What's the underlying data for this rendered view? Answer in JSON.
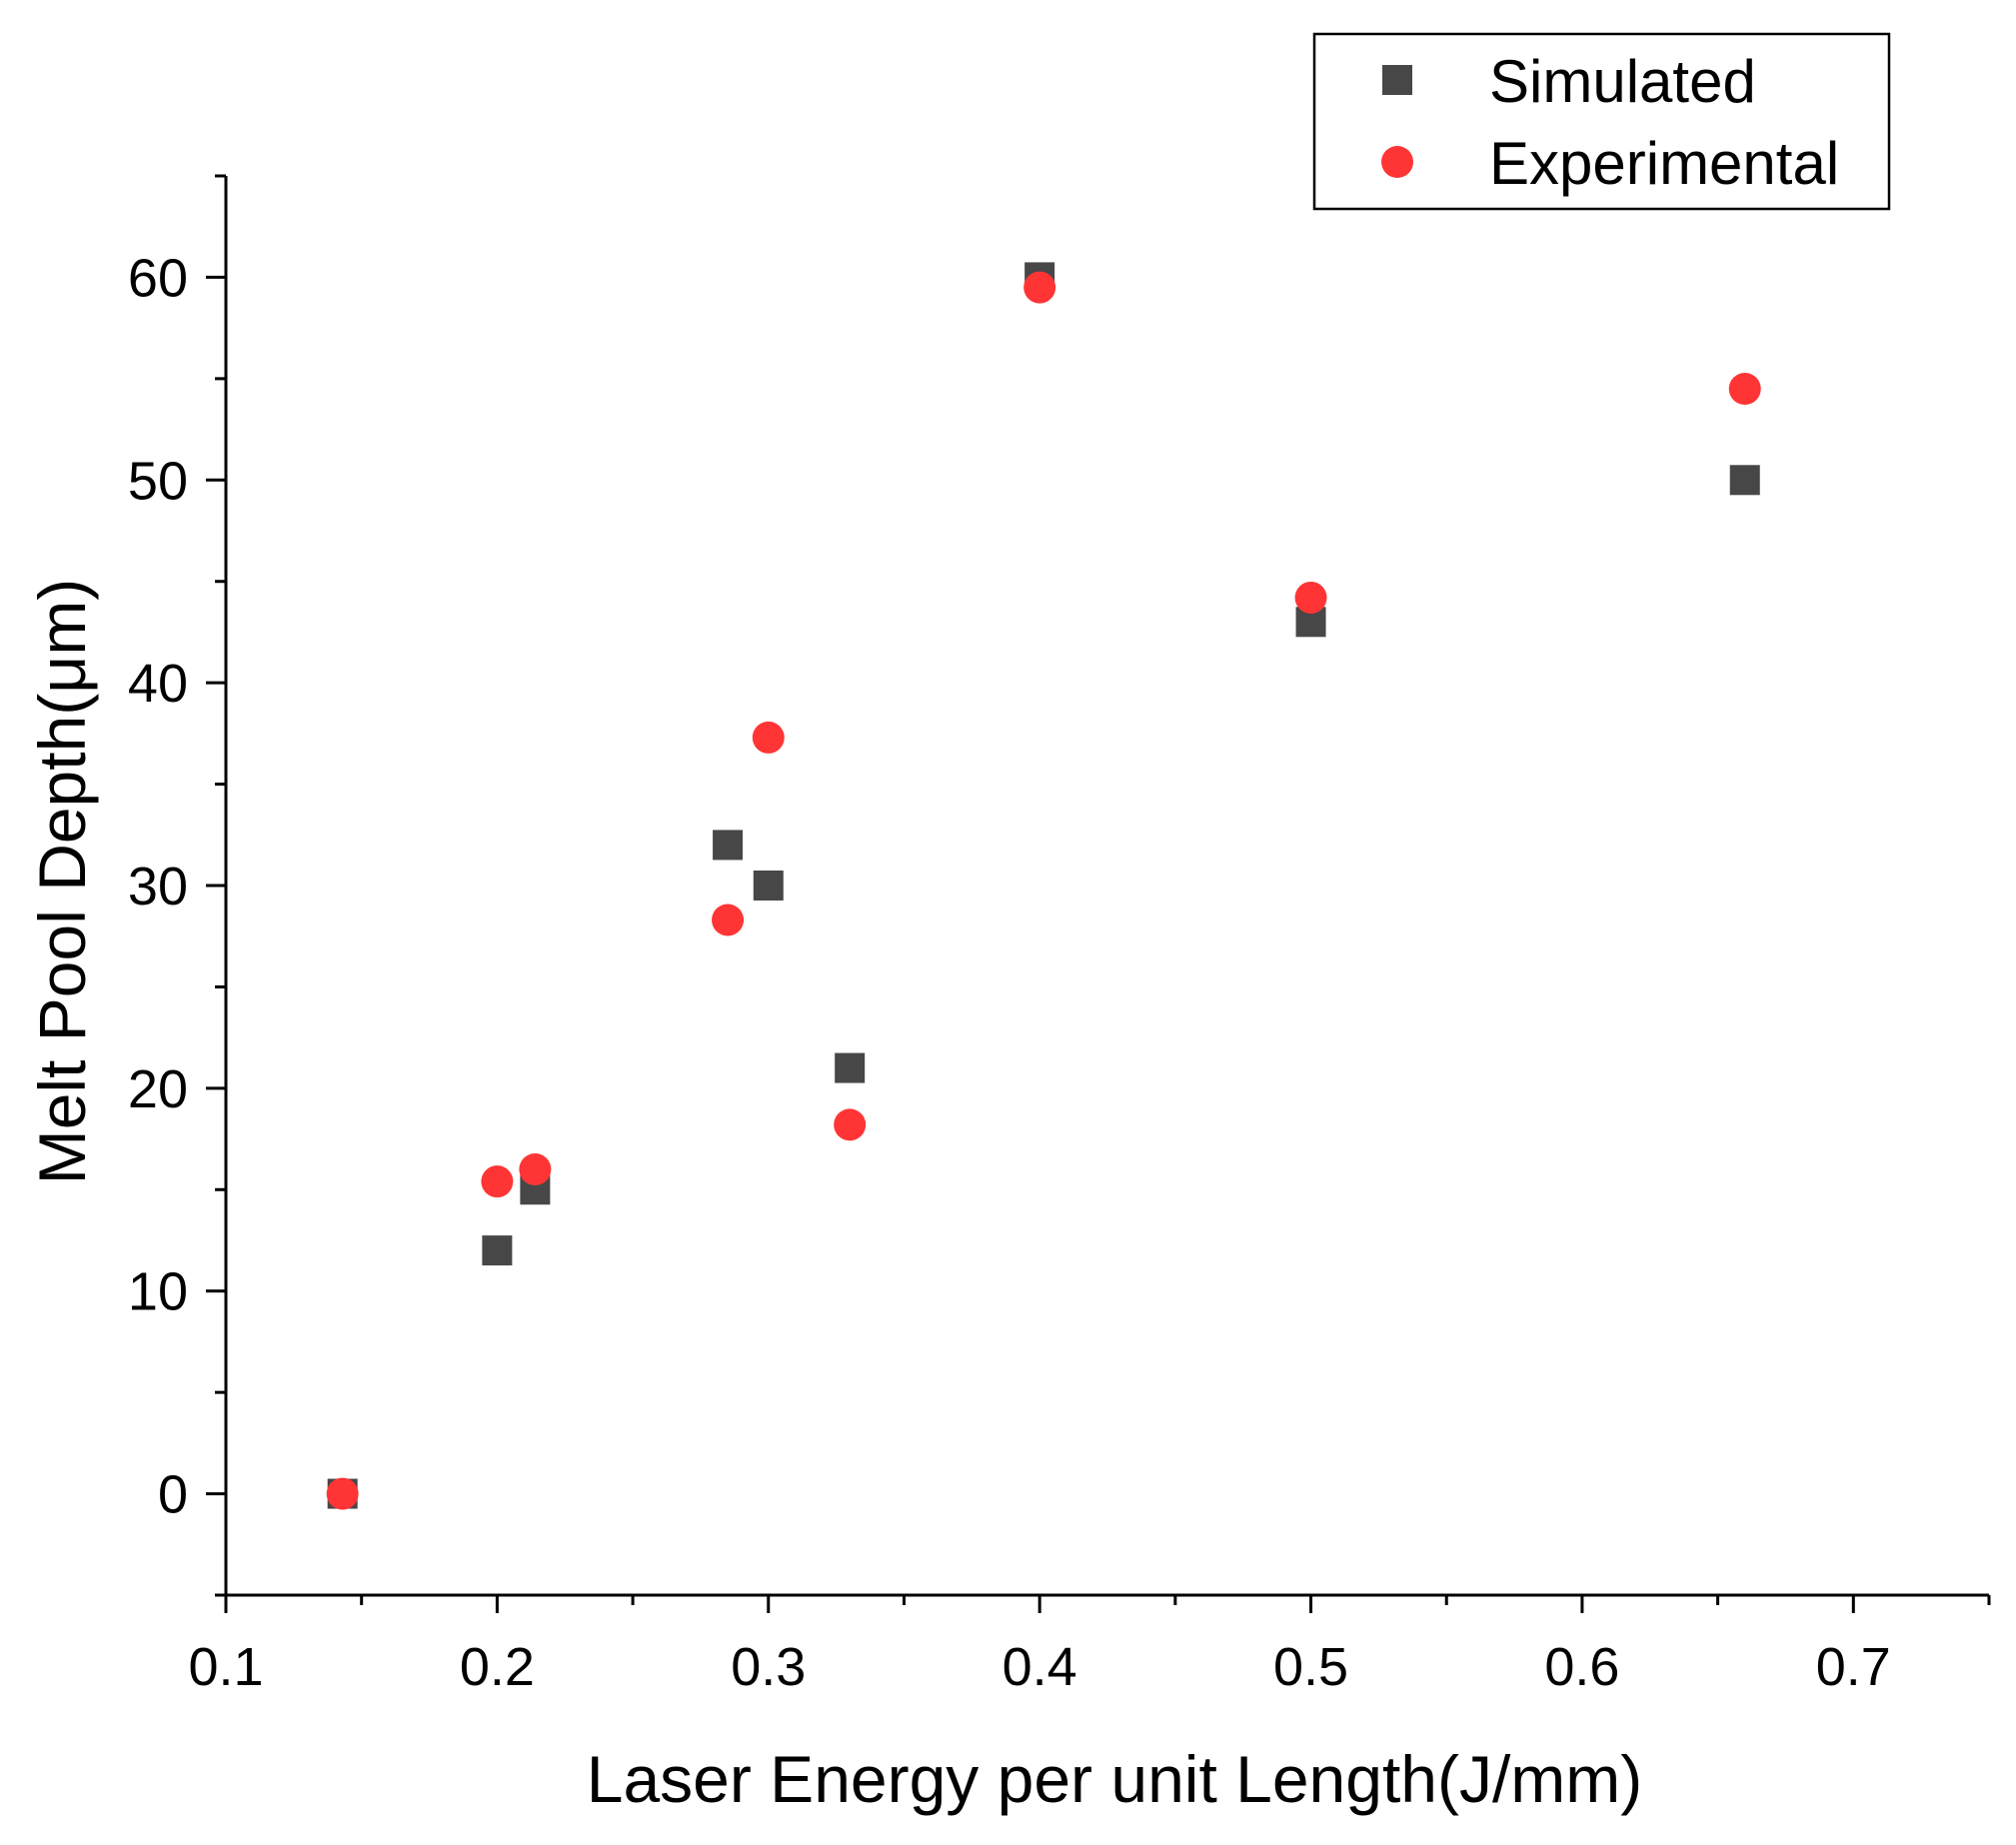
{
  "chart_data": {
    "type": "scatter",
    "title": "",
    "xlabel": "Laser Energy per unit Length(J/mm)",
    "ylabel": "Melt Pool Depth(μm)",
    "xlim": [
      0.1,
      0.75
    ],
    "ylim": [
      -5,
      65
    ],
    "xticks": [
      0.1,
      0.2,
      0.3,
      0.4,
      0.5,
      0.6,
      0.7
    ],
    "xtick_labels": [
      "0.1",
      "0.2",
      "0.3",
      "0.4",
      "0.5",
      "0.6",
      "0.7"
    ],
    "yticks": [
      0,
      10,
      20,
      30,
      40,
      50,
      60
    ],
    "ytick_labels": [
      "0",
      "10",
      "20",
      "30",
      "40",
      "50",
      "60"
    ],
    "legend_position": "top-right",
    "series": [
      {
        "name": "Simulated",
        "marker": "square",
        "color": "#474747",
        "x": [
          0.143,
          0.2,
          0.214,
          0.285,
          0.3,
          0.33,
          0.4,
          0.5,
          0.66
        ],
        "y": [
          0,
          12,
          15,
          32,
          30,
          21,
          60,
          43,
          50
        ]
      },
      {
        "name": "Experimental",
        "marker": "circle",
        "color": "#ff3535",
        "x": [
          0.143,
          0.2,
          0.214,
          0.285,
          0.3,
          0.33,
          0.4,
          0.5,
          0.66
        ],
        "y": [
          0,
          15.4,
          16,
          28.3,
          37.3,
          18.2,
          59.5,
          44.2,
          54.5
        ]
      }
    ]
  }
}
